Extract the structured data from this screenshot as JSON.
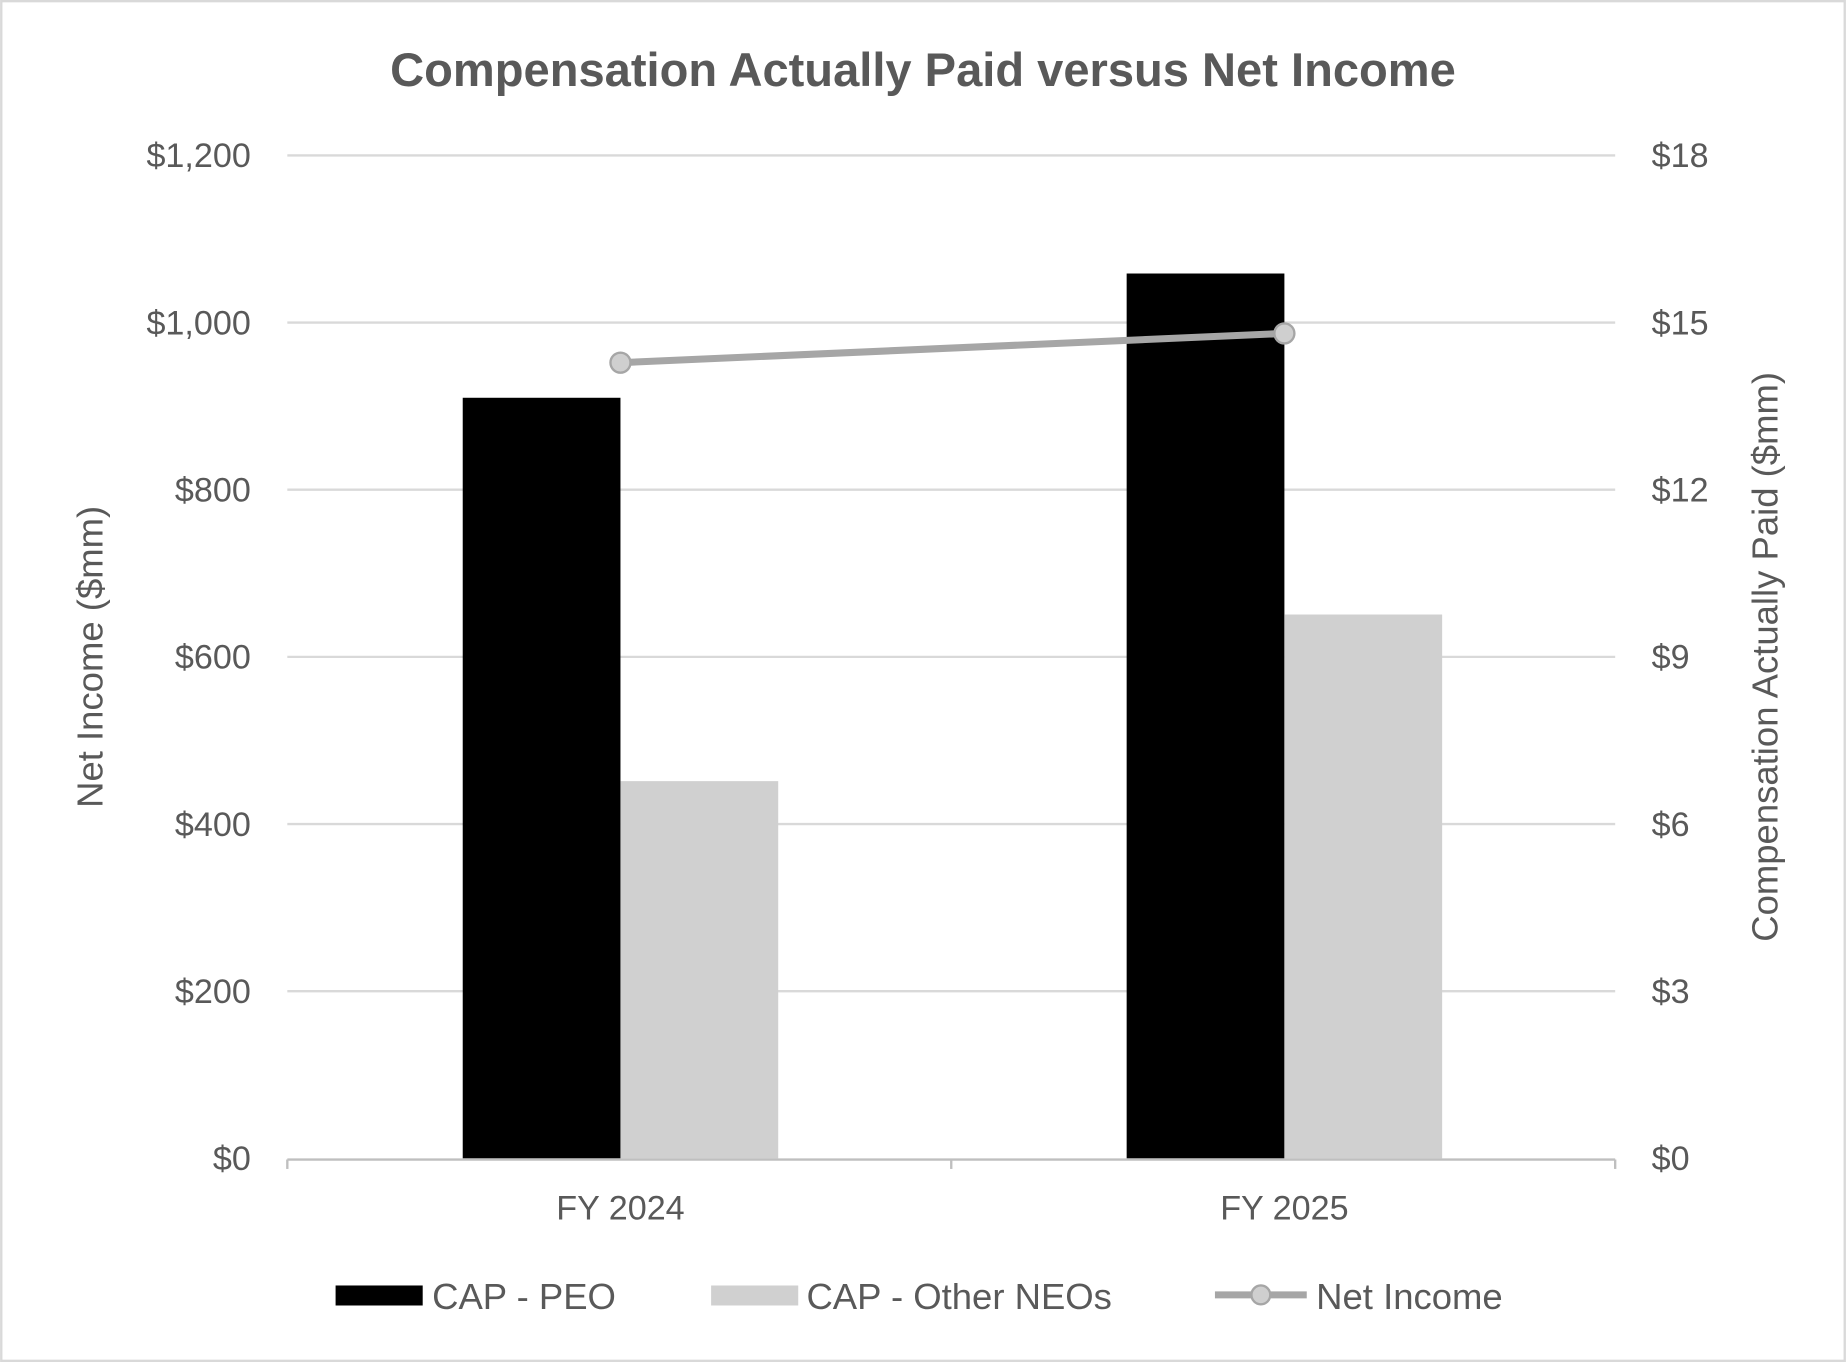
{
  "chart_data": {
    "type": "bar",
    "title": "Compensation Actually Paid versus Net Income",
    "categories": [
      "FY 2024",
      "FY 2025"
    ],
    "y_left": {
      "label": "Net Income ($mm)",
      "range": [
        0,
        1200
      ],
      "ticks": [
        "$0",
        "$200",
        "$400",
        "$600",
        "$800",
        "$1,000",
        "$1,200"
      ],
      "tick_values": [
        0,
        200,
        400,
        600,
        800,
        1000,
        1200
      ]
    },
    "y_right": {
      "label": "Compensation Actually Paid ($mm)",
      "range": [
        0,
        18
      ],
      "ticks": [
        "$0",
        "$3",
        "$6",
        "$9",
        "$12",
        "$15",
        "$18"
      ],
      "tick_values": [
        0,
        3,
        6,
        9,
        12,
        15,
        18
      ]
    },
    "series": [
      {
        "name": "CAP - PEO",
        "type": "bar",
        "axis": "right",
        "color": "#000000",
        "values": [
          13.65,
          15.88
        ]
      },
      {
        "name": "CAP - Other NEOs",
        "type": "bar",
        "axis": "right",
        "color": "#D0D0D0",
        "values": [
          6.77,
          9.76
        ]
      },
      {
        "name": "Net Income",
        "type": "line",
        "axis": "left",
        "color": "#A6A6A6",
        "marker_color": "#CFCFCF",
        "values": [
          952,
          987
        ]
      }
    ],
    "grid": true,
    "legend": "bottom"
  }
}
